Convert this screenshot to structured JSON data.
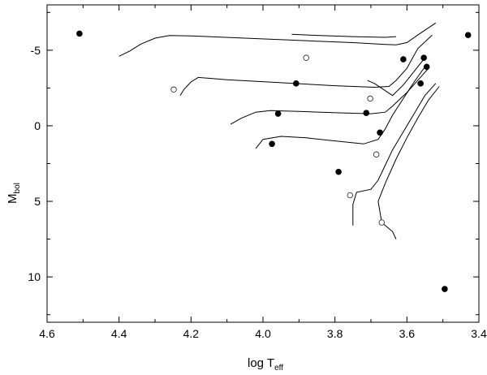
{
  "chart_data": {
    "type": "scatter",
    "title": "",
    "xlabel": "log T",
    "xlabel_sub": "eff",
    "ylabel": "M",
    "ylabel_sub": "bol",
    "xlim": [
      4.6,
      3.4
    ],
    "ylim": [
      13,
      -8
    ],
    "y_inverted": true,
    "x_inverted": true,
    "xticks": [
      4.6,
      4.4,
      4.2,
      4.0,
      3.8,
      3.6,
      3.4
    ],
    "xtick_labels": [
      "4.6",
      "4.4",
      "4.2",
      "4.0",
      "3.8",
      "3.6",
      "3.4"
    ],
    "yticks": [
      -5,
      0,
      5,
      10
    ],
    "ytick_labels": [
      "-5",
      "0",
      "5",
      "10"
    ],
    "grid": false,
    "legend": "none",
    "series": [
      {
        "marker": "filled-circle",
        "points": [
          [
            4.51,
            -6.1
          ],
          [
            3.43,
            -6.0
          ],
          [
            3.61,
            -4.4
          ],
          [
            3.553,
            -4.5
          ],
          [
            3.545,
            -3.9
          ],
          [
            3.908,
            -2.8
          ],
          [
            3.562,
            -2.8
          ],
          [
            3.958,
            -0.8
          ],
          [
            3.713,
            -0.85
          ],
          [
            3.675,
            0.45
          ],
          [
            3.975,
            1.2
          ],
          [
            3.79,
            3.05
          ],
          [
            3.495,
            10.8
          ]
        ]
      },
      {
        "marker": "open-circle",
        "points": [
          [
            3.88,
            -4.5
          ],
          [
            4.248,
            -2.4
          ],
          [
            3.702,
            -1.8
          ],
          [
            3.685,
            1.9
          ],
          [
            3.758,
            4.6
          ],
          [
            3.67,
            6.4
          ]
        ]
      }
    ],
    "tracks": [
      {
        "points": [
          [
            3.52,
            -6.8
          ],
          [
            3.57,
            -6.0
          ],
          [
            3.6,
            -5.5
          ],
          [
            3.63,
            -5.35
          ],
          [
            3.66,
            -5.38
          ],
          [
            3.75,
            -5.5
          ],
          [
            3.9,
            -5.65
          ],
          [
            4.05,
            -5.8
          ],
          [
            4.2,
            -5.95
          ],
          [
            4.26,
            -5.97
          ],
          [
            4.3,
            -5.8
          ],
          [
            4.34,
            -5.4
          ],
          [
            4.37,
            -4.95
          ],
          [
            4.4,
            -4.6
          ]
        ]
      },
      {
        "points": [
          [
            3.63,
            -5.9
          ],
          [
            3.66,
            -5.85
          ],
          [
            3.75,
            -5.9
          ],
          [
            3.85,
            -5.98
          ],
          [
            3.92,
            -6.05
          ]
        ]
      },
      {
        "points": [
          [
            3.53,
            -6.0
          ],
          [
            3.57,
            -5.1
          ],
          [
            3.6,
            -3.8
          ],
          [
            3.63,
            -3.0
          ],
          [
            3.65,
            -2.6
          ],
          [
            3.69,
            -2.55
          ],
          [
            3.8,
            -2.65
          ],
          [
            3.95,
            -2.85
          ],
          [
            4.1,
            -3.05
          ],
          [
            4.18,
            -3.2
          ],
          [
            4.2,
            -2.9
          ],
          [
            4.22,
            -2.4
          ],
          [
            4.23,
            -2.0
          ]
        ]
      },
      {
        "points": [
          [
            3.55,
            -4.5
          ],
          [
            3.58,
            -3.6
          ],
          [
            3.61,
            -2.7
          ],
          [
            3.64,
            -2.0
          ],
          [
            3.69,
            -2.8
          ],
          [
            3.71,
            -3.0
          ]
        ]
      },
      {
        "points": [
          [
            3.54,
            -3.8
          ],
          [
            3.57,
            -3.0
          ],
          [
            3.6,
            -2.2
          ],
          [
            3.64,
            -1.3
          ],
          [
            3.66,
            -0.9
          ],
          [
            3.7,
            -0.8
          ],
          [
            3.78,
            -0.85
          ],
          [
            3.9,
            -0.95
          ],
          [
            3.98,
            -1.0
          ],
          [
            4.02,
            -0.9
          ],
          [
            4.06,
            -0.5
          ],
          [
            4.09,
            -0.1
          ]
        ]
      },
      {
        "points": [
          [
            3.55,
            -3.9
          ],
          [
            3.58,
            -2.9
          ],
          [
            3.61,
            -1.8
          ],
          [
            3.64,
            -0.7
          ],
          [
            3.66,
            0.2
          ],
          [
            3.68,
            0.9
          ],
          [
            3.72,
            1.2
          ],
          [
            3.8,
            1.0
          ],
          [
            3.88,
            0.8
          ],
          [
            3.95,
            0.7
          ],
          [
            4.0,
            0.9
          ],
          [
            4.02,
            1.5
          ]
        ]
      },
      {
        "points": [
          [
            3.52,
            -2.8
          ],
          [
            3.55,
            -2.0
          ],
          [
            3.58,
            -0.8
          ],
          [
            3.61,
            0.4
          ],
          [
            3.64,
            1.6
          ],
          [
            3.66,
            2.6
          ],
          [
            3.68,
            3.6
          ],
          [
            3.7,
            4.2
          ],
          [
            3.74,
            4.4
          ],
          [
            3.75,
            5.2
          ],
          [
            3.75,
            6.6
          ]
        ]
      },
      {
        "points": [
          [
            3.51,
            -2.6
          ],
          [
            3.54,
            -1.7
          ],
          [
            3.57,
            -0.5
          ],
          [
            3.6,
            0.8
          ],
          [
            3.63,
            2.2
          ],
          [
            3.66,
            3.8
          ],
          [
            3.68,
            5.0
          ],
          [
            3.67,
            6.4
          ],
          [
            3.64,
            7.0
          ],
          [
            3.63,
            7.5
          ]
        ]
      }
    ]
  }
}
